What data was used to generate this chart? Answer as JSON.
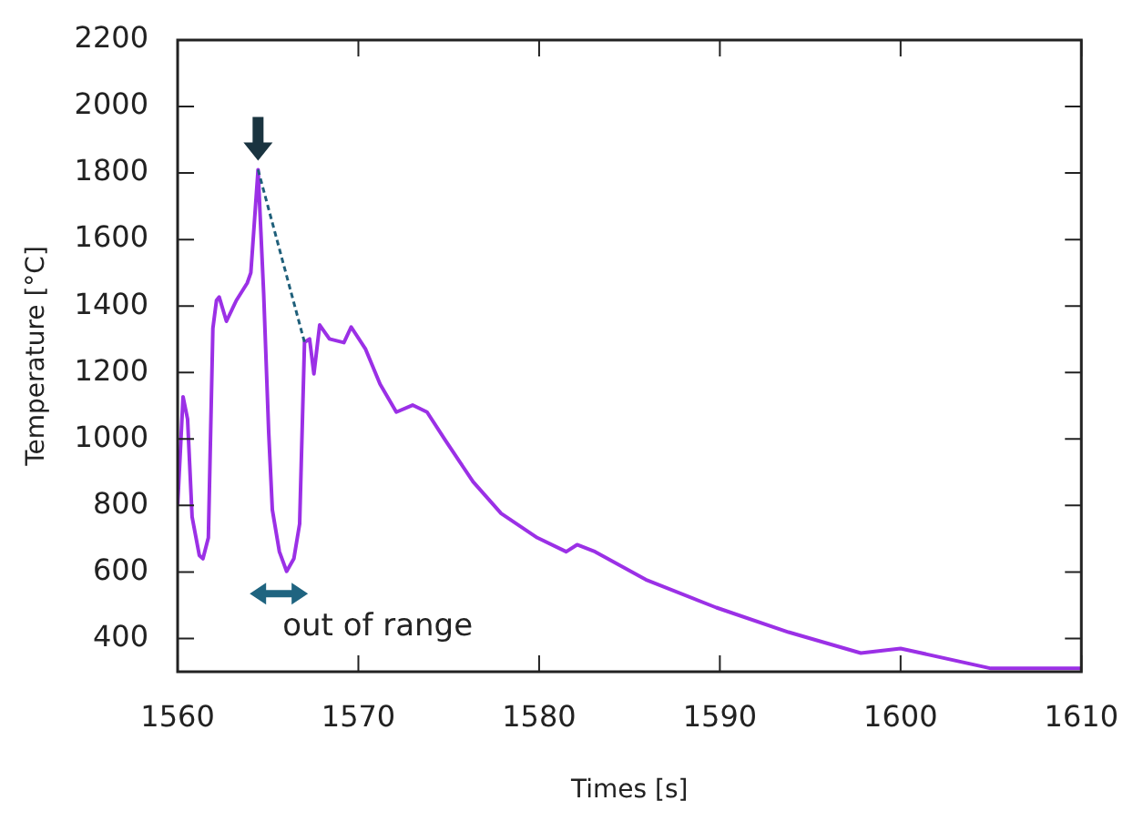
{
  "chart_data": {
    "type": "line",
    "xlabel": "Times [s]",
    "ylabel": "Temperature [°C]",
    "xlim": [
      1560,
      1610
    ],
    "xticks": [
      1560,
      1570,
      1580,
      1590,
      1600,
      1610
    ],
    "ylim": [
      300,
      2200
    ],
    "yticks": [
      400,
      600,
      800,
      1000,
      1200,
      1400,
      1600,
      1800,
      2000,
      2200
    ],
    "grid": false,
    "legend": false,
    "marker": "none",
    "annotations": [
      {
        "text": "out of range",
        "x": 1565.6,
        "y": 535
      }
    ],
    "series": [
      {
        "color": "#9b30e6",
        "line_style": "solid",
        "x": [
          1560,
          1560.3,
          1560.55,
          1560.8,
          1561.2,
          1561.4,
          1561.7,
          1561.95,
          1562.15,
          1562.3,
          1562.7,
          1563.25,
          1563.85,
          1564.05,
          1564.45,
          1564.76,
          1565.04,
          1565.24,
          1565.63,
          1566.03,
          1566.43,
          1566.75,
          1567.02,
          1567.3,
          1567.54,
          1567.86,
          1568.4,
          1569.2,
          1569.6,
          1570.4,
          1571.2,
          1572.1,
          1573,
          1573.8,
          1574.8,
          1576.35,
          1577.9,
          1579.9,
          1581.5,
          1582.1,
          1583.1,
          1585.9,
          1589.8,
          1593.8,
          1597.8,
          1600,
          1605,
          1610
        ],
        "values": [
          800,
          1127,
          1060,
          766,
          650,
          640,
          703,
          1333,
          1417,
          1427,
          1354,
          1417,
          1469,
          1500,
          1810,
          1438,
          1018,
          787,
          661,
          602,
          640,
          745,
          1291,
          1301,
          1196,
          1343,
          1301,
          1290,
          1337,
          1270,
          1165,
          1081,
          1102,
          1081,
          997,
          871,
          776,
          703,
          661,
          682,
          661,
          577,
          493,
          419,
          356,
          370,
          310,
          310
        ]
      },
      {
        "color": "#1f5f7a",
        "line_style": "dashed",
        "x": [
          1564.45,
          1567.02
        ],
        "values": [
          1810,
          1291
        ]
      }
    ]
  }
}
